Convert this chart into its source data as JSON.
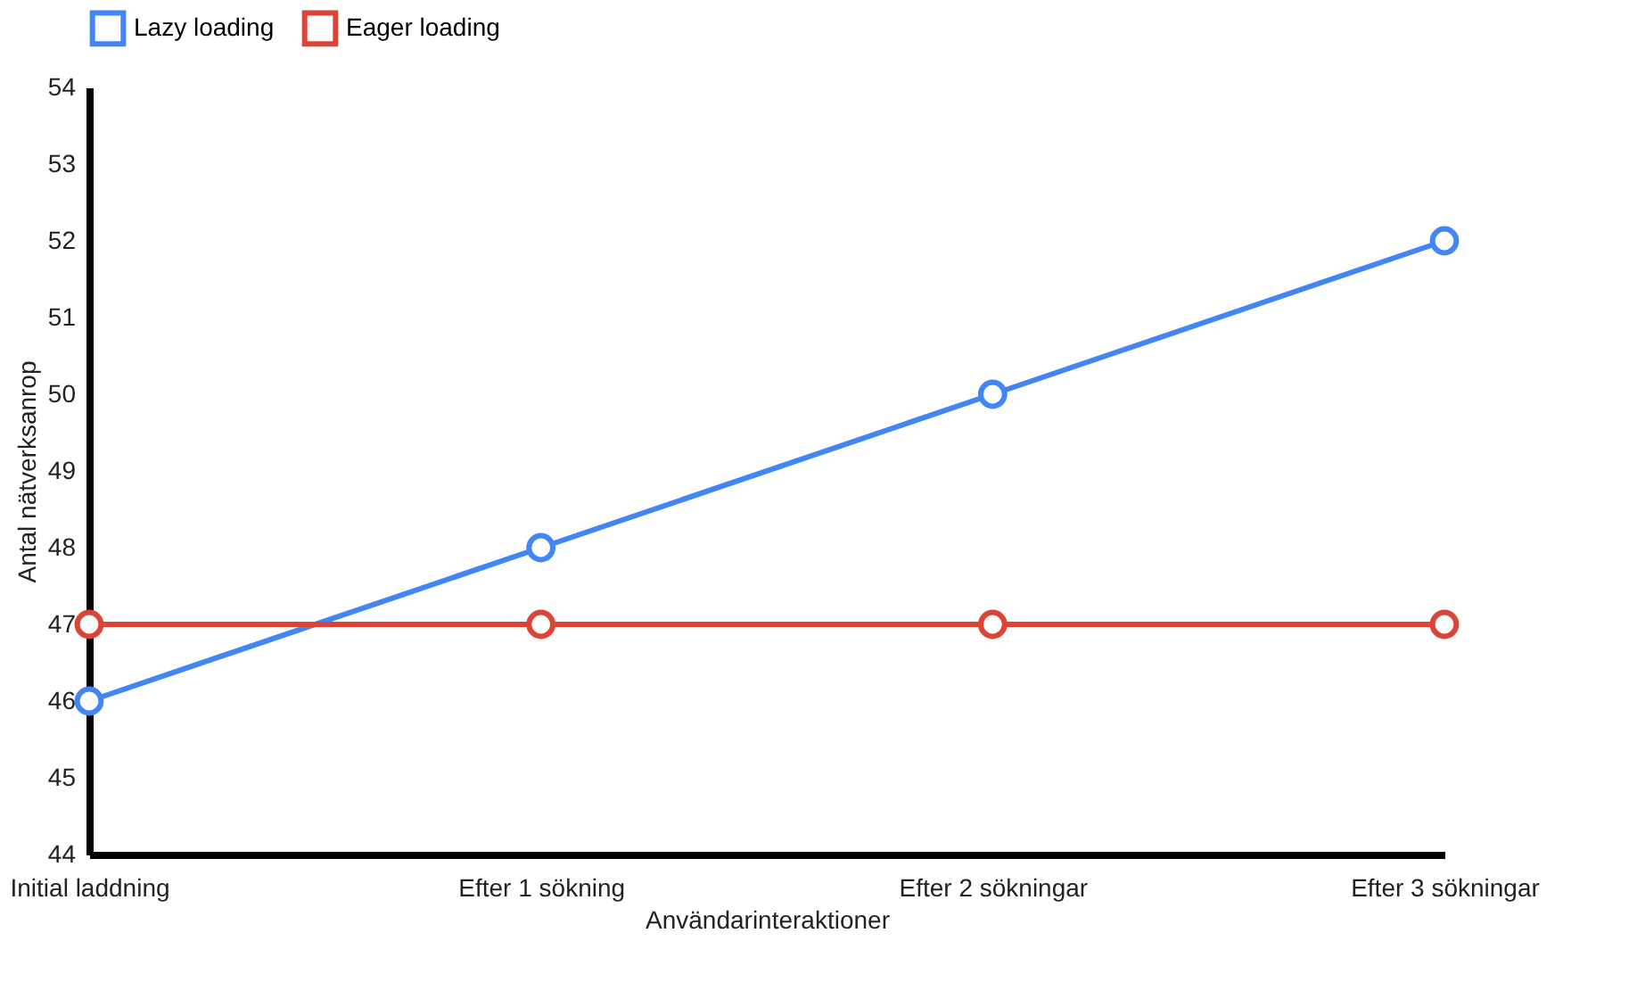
{
  "chart_data": {
    "type": "line",
    "xlabel": "Användarinteraktioner",
    "ylabel": "Antal nätverksanrop",
    "categories": [
      "Initial laddning",
      "Efter 1 sökning",
      "Efter 2 sökningar",
      "Efter 3 sökningar"
    ],
    "series": [
      {
        "name": "Lazy loading",
        "color": "#4285f4",
        "values": [
          46,
          48,
          50,
          52
        ]
      },
      {
        "name": "Eager loading",
        "color": "#db4437",
        "values": [
          47,
          47,
          47,
          47
        ]
      }
    ],
    "ylim": [
      44,
      54
    ],
    "yticks": [
      44,
      45,
      46,
      47,
      48,
      49,
      50,
      51,
      52,
      53,
      54
    ],
    "grid": false,
    "legend": "top",
    "marker": "circle",
    "line_style": "solid"
  }
}
